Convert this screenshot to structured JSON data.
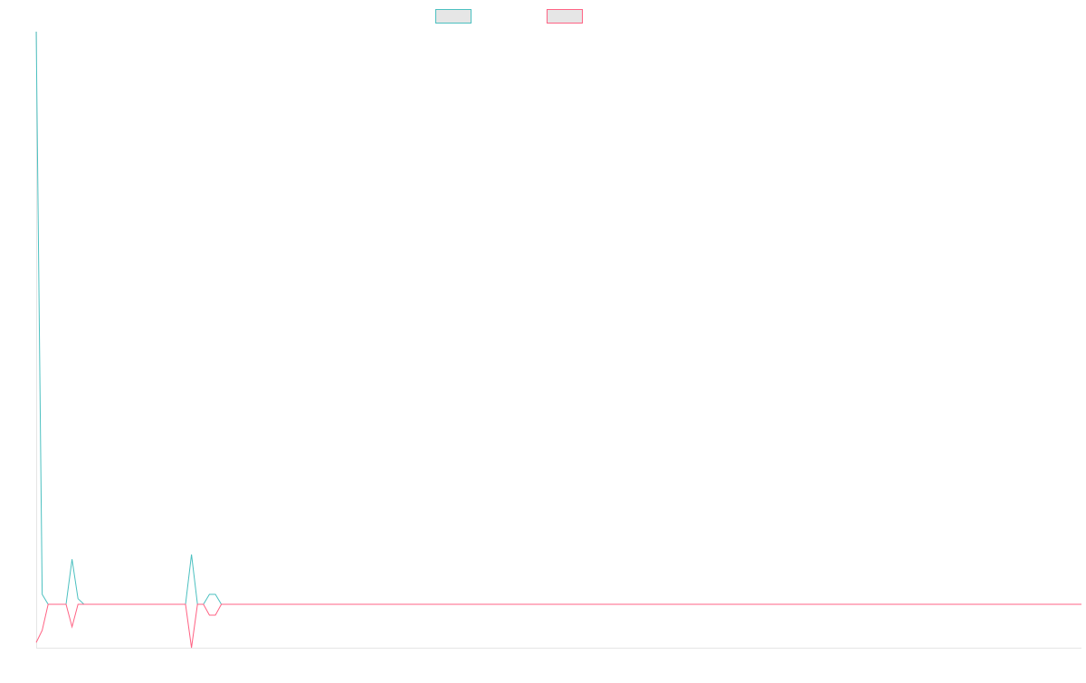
{
  "chart_data": {
    "type": "line",
    "ylim": [
      -1,
      13.2
    ],
    "series": [
      {
        "color": "#4bc0c0",
        "values": [
          13.2,
          0.23,
          0,
          0,
          0,
          0,
          1.04,
          0.13,
          0,
          0,
          0,
          0,
          0,
          0,
          0,
          0,
          0,
          0,
          0,
          0,
          0,
          0,
          0,
          0,
          0,
          0,
          1.15,
          0,
          0,
          0.23,
          0.23,
          0,
          0,
          0,
          0,
          0,
          0,
          0,
          0,
          0,
          0,
          0,
          0,
          0,
          0,
          0,
          0,
          0,
          0,
          0,
          0,
          0,
          0,
          0,
          0,
          0,
          0,
          0,
          0,
          0,
          0,
          0,
          0,
          0,
          0,
          0,
          0,
          0,
          0,
          0,
          0,
          0,
          0,
          0,
          0,
          0,
          0,
          0,
          0,
          0,
          0,
          0,
          0,
          0,
          0,
          0,
          0,
          0,
          0,
          0,
          0,
          0,
          0,
          0,
          0,
          0,
          0,
          0,
          0,
          0,
          0,
          0,
          0,
          0,
          0,
          0,
          0,
          0,
          0,
          0,
          0,
          0,
          0,
          0,
          0,
          0,
          0,
          0,
          0,
          0,
          0,
          0,
          0,
          0,
          0,
          0,
          0,
          0,
          0,
          0,
          0,
          0,
          0,
          0,
          0,
          0,
          0,
          0,
          0,
          0,
          0,
          0,
          0,
          0,
          0,
          0,
          0,
          0,
          0,
          0,
          0,
          0,
          0,
          0,
          0,
          0,
          0,
          0,
          0,
          0,
          0,
          0,
          0,
          0,
          0,
          0,
          0,
          0,
          0,
          0,
          0,
          0,
          0,
          0,
          0,
          0
        ]
      },
      {
        "color": "#ff6384",
        "values": [
          -0.88,
          -0.6,
          0,
          0,
          0,
          0,
          -0.52,
          0,
          0,
          0,
          0,
          0,
          0,
          0,
          0,
          0,
          0,
          0,
          0,
          0,
          0,
          0,
          0,
          0,
          0,
          0,
          -1.0,
          0,
          0,
          -0.25,
          -0.25,
          0,
          0,
          0,
          0,
          0,
          0,
          0,
          0,
          0,
          0,
          0,
          0,
          0,
          0,
          0,
          0,
          0,
          0,
          0,
          0,
          0,
          0,
          0,
          0,
          0,
          0,
          0,
          0,
          0,
          0,
          0,
          0,
          0,
          0,
          0,
          0,
          0,
          0,
          0,
          0,
          0,
          0,
          0,
          0,
          0,
          0,
          0,
          0,
          0,
          0,
          0,
          0,
          0,
          0,
          0,
          0,
          0,
          0,
          0,
          0,
          0,
          0,
          0,
          0,
          0,
          0,
          0,
          0,
          0,
          0,
          0,
          0,
          0,
          0,
          0,
          0,
          0,
          0,
          0,
          0,
          0,
          0,
          0,
          0,
          0,
          0,
          0,
          0,
          0,
          0,
          0,
          0,
          0,
          0,
          0,
          0,
          0,
          0,
          0,
          0,
          0,
          0,
          0,
          0,
          0,
          0,
          0,
          0,
          0,
          0,
          0,
          0,
          0,
          0,
          0,
          0,
          0,
          0,
          0,
          0,
          0,
          0,
          0,
          0,
          0,
          0,
          0,
          0,
          0,
          0,
          0,
          0,
          0,
          0,
          0,
          0,
          0,
          0,
          0,
          0,
          0,
          0,
          0,
          0,
          0
        ]
      }
    ]
  }
}
